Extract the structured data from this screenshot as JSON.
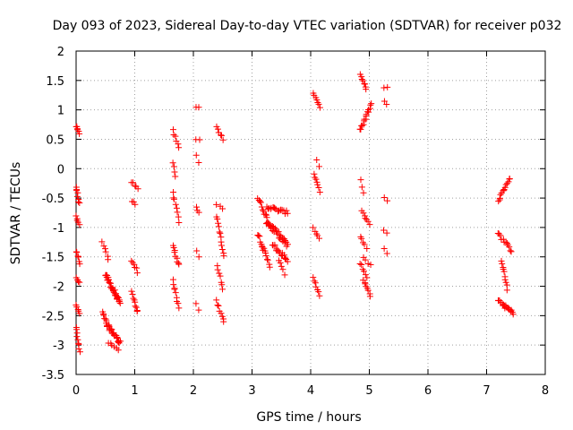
{
  "chart_data": {
    "type": "scatter",
    "title": "Day 093 of 2023, Sidereal Day-to-day VTEC variation (SDTVAR) for receiver p032",
    "xlabel": "GPS time / hours",
    "ylabel": "SDTVAR / TECUs",
    "xlim": [
      0,
      8
    ],
    "ylim": [
      -3.5,
      2
    ],
    "xticks": [
      0,
      1,
      2,
      3,
      4,
      5,
      6,
      7,
      8
    ],
    "xtick_labels": [
      "0",
      "1",
      "2",
      "3",
      "4",
      "5",
      "6",
      "7",
      "8"
    ],
    "yticks": [
      -3.5,
      -3,
      -2.5,
      -2,
      -1.5,
      -1,
      -0.5,
      0,
      0.5,
      1,
      1.5,
      2
    ],
    "ytick_labels": [
      "-3.5",
      "-3",
      "-2.5",
      "-2",
      "-1.5",
      "-1",
      "-0.5",
      "0",
      "0.5",
      "1",
      "1.5",
      "2"
    ],
    "grid": true,
    "marker": "+",
    "color": "#ff0000",
    "segments": [
      {
        "x0": 0.0,
        "x1": 0.05,
        "y0": 0.72,
        "y1": 0.6,
        "n": 6,
        "j": 0.04
      },
      {
        "x0": 0.0,
        "x1": 0.05,
        "y0": -0.3,
        "y1": -0.6,
        "n": 8,
        "j": 0.05
      },
      {
        "x0": 0.0,
        "x1": 0.05,
        "y0": -0.8,
        "y1": -0.95,
        "n": 5,
        "j": 0.04
      },
      {
        "x0": 0.0,
        "x1": 0.06,
        "y0": -1.4,
        "y1": -1.6,
        "n": 6,
        "j": 0.05
      },
      {
        "x0": 0.0,
        "x1": 0.06,
        "y0": -1.85,
        "y1": -1.95,
        "n": 4,
        "j": 0.04
      },
      {
        "x0": 0.0,
        "x1": 0.06,
        "y0": -2.3,
        "y1": -2.45,
        "n": 5,
        "j": 0.04
      },
      {
        "x0": 0.0,
        "x1": 0.06,
        "y0": -2.7,
        "y1": -3.12,
        "n": 9,
        "j": 0.05
      },
      {
        "x0": 0.45,
        "x1": 0.55,
        "y0": -1.25,
        "y1": -1.55,
        "n": 6,
        "j": 0.05
      },
      {
        "x0": 0.45,
        "x1": 0.52,
        "y0": -2.45,
        "y1": -2.6,
        "n": 6,
        "j": 0.04
      },
      {
        "x0": 0.52,
        "x1": 0.75,
        "y0": -2.65,
        "y1": -2.95,
        "n": 28,
        "j": 0.07
      },
      {
        "x0": 0.5,
        "x1": 0.75,
        "y0": -1.8,
        "y1": -2.3,
        "n": 34,
        "j": 0.09
      },
      {
        "x0": 0.55,
        "x1": 0.72,
        "y0": -2.95,
        "y1": -3.1,
        "n": 6,
        "j": 0.04
      },
      {
        "x0": 0.95,
        "x1": 1.05,
        "y0": -0.22,
        "y1": -0.35,
        "n": 5,
        "j": 0.04
      },
      {
        "x0": 0.95,
        "x1": 1.0,
        "y0": -0.55,
        "y1": -0.6,
        "n": 3,
        "j": 0.03
      },
      {
        "x0": 0.95,
        "x1": 1.05,
        "y0": -1.55,
        "y1": -1.75,
        "n": 6,
        "j": 0.05
      },
      {
        "x0": 0.95,
        "x1": 1.05,
        "y0": -2.1,
        "y1": -2.45,
        "n": 9,
        "j": 0.05
      },
      {
        "x0": 1.65,
        "x1": 1.75,
        "y0": 0.65,
        "y1": 0.35,
        "n": 6,
        "j": 0.05
      },
      {
        "x0": 1.65,
        "x1": 1.7,
        "y0": 0.1,
        "y1": -0.12,
        "n": 4,
        "j": 0.04
      },
      {
        "x0": 1.65,
        "x1": 1.75,
        "y0": -0.4,
        "y1": -0.9,
        "n": 8,
        "j": 0.05
      },
      {
        "x0": 1.65,
        "x1": 1.75,
        "y0": -1.3,
        "y1": -1.65,
        "n": 9,
        "j": 0.05
      },
      {
        "x0": 1.65,
        "x1": 1.75,
        "y0": -1.9,
        "y1": -2.35,
        "n": 9,
        "j": 0.05
      },
      {
        "x0": 2.05,
        "x1": 2.1,
        "y0": 1.05,
        "y1": 1.05,
        "n": 2,
        "j": 0.02
      },
      {
        "x0": 2.05,
        "x1": 2.1,
        "y0": 0.5,
        "y1": 0.5,
        "n": 2,
        "j": 0.02
      },
      {
        "x0": 2.05,
        "x1": 2.1,
        "y0": 0.22,
        "y1": 0.1,
        "n": 2,
        "j": 0.02
      },
      {
        "x0": 2.05,
        "x1": 2.1,
        "y0": -0.65,
        "y1": -0.75,
        "n": 3,
        "j": 0.03
      },
      {
        "x0": 2.05,
        "x1": 2.1,
        "y0": -1.4,
        "y1": -1.5,
        "n": 2,
        "j": 0.02
      },
      {
        "x0": 2.05,
        "x1": 2.1,
        "y0": -2.3,
        "y1": -2.4,
        "n": 2,
        "j": 0.02
      },
      {
        "x0": 2.4,
        "x1": 2.5,
        "y0": 0.72,
        "y1": 0.5,
        "n": 6,
        "j": 0.04
      },
      {
        "x0": 2.4,
        "x1": 2.5,
        "y0": -0.6,
        "y1": -0.7,
        "n": 3,
        "j": 0.04
      },
      {
        "x0": 2.4,
        "x1": 2.52,
        "y0": -0.8,
        "y1": -1.5,
        "n": 12,
        "j": 0.05
      },
      {
        "x0": 2.4,
        "x1": 2.5,
        "y0": -1.65,
        "y1": -2.05,
        "n": 7,
        "j": 0.05
      },
      {
        "x0": 2.4,
        "x1": 2.52,
        "y0": -2.25,
        "y1": -2.6,
        "n": 8,
        "j": 0.05
      },
      {
        "x0": 3.1,
        "x1": 3.3,
        "y0": -0.5,
        "y1": -0.95,
        "n": 14,
        "j": 0.07
      },
      {
        "x0": 3.1,
        "x1": 3.3,
        "y0": -1.1,
        "y1": -1.65,
        "n": 16,
        "j": 0.08
      },
      {
        "x0": 3.25,
        "x1": 3.6,
        "y0": -0.65,
        "y1": -0.75,
        "n": 18,
        "j": 0.06
      },
      {
        "x0": 3.25,
        "x1": 3.6,
        "y0": -0.9,
        "y1": -1.3,
        "n": 32,
        "j": 0.1
      },
      {
        "x0": 3.35,
        "x1": 3.6,
        "y0": -1.3,
        "y1": -1.55,
        "n": 18,
        "j": 0.08
      },
      {
        "x0": 3.45,
        "x1": 3.55,
        "y0": -1.55,
        "y1": -1.8,
        "n": 5,
        "j": 0.05
      },
      {
        "x0": 4.05,
        "x1": 4.15,
        "y0": 1.3,
        "y1": 1.05,
        "n": 7,
        "j": 0.04
      },
      {
        "x0": 4.1,
        "x1": 4.15,
        "y0": 0.15,
        "y1": 0.05,
        "n": 2,
        "j": 0.03
      },
      {
        "x0": 4.05,
        "x1": 4.15,
        "y0": -0.1,
        "y1": -0.38,
        "n": 7,
        "j": 0.04
      },
      {
        "x0": 4.05,
        "x1": 4.15,
        "y0": -1.0,
        "y1": -1.2,
        "n": 5,
        "j": 0.04
      },
      {
        "x0": 4.05,
        "x1": 4.15,
        "y0": -1.85,
        "y1": -2.15,
        "n": 7,
        "j": 0.04
      },
      {
        "x0": 4.85,
        "x1": 4.95,
        "y0": 1.6,
        "y1": 1.35,
        "n": 8,
        "j": 0.04
      },
      {
        "x0": 4.85,
        "x1": 5.03,
        "y0": 0.65,
        "y1": 1.1,
        "n": 16,
        "j": 0.05
      },
      {
        "x0": 4.85,
        "x1": 4.9,
        "y0": -0.2,
        "y1": -0.4,
        "n": 3,
        "j": 0.03
      },
      {
        "x0": 4.88,
        "x1": 5.0,
        "y0": -0.7,
        "y1": -0.95,
        "n": 7,
        "j": 0.04
      },
      {
        "x0": 4.85,
        "x1": 4.95,
        "y0": -1.15,
        "y1": -1.35,
        "n": 5,
        "j": 0.04
      },
      {
        "x0": 4.85,
        "x1": 4.95,
        "y0": -1.6,
        "y1": -1.85,
        "n": 6,
        "j": 0.04
      },
      {
        "x0": 4.9,
        "x1": 5.02,
        "y0": -1.5,
        "y1": -1.65,
        "n": 4,
        "j": 0.04
      },
      {
        "x0": 4.9,
        "x1": 5.02,
        "y0": -1.9,
        "y1": -2.15,
        "n": 8,
        "j": 0.05
      },
      {
        "x0": 5.25,
        "x1": 5.3,
        "y0": 1.38,
        "y1": 1.38,
        "n": 2,
        "j": 0.02
      },
      {
        "x0": 5.25,
        "x1": 5.3,
        "y0": 1.15,
        "y1": 1.1,
        "n": 2,
        "j": 0.02
      },
      {
        "x0": 5.25,
        "x1": 5.3,
        "y0": -0.5,
        "y1": -0.55,
        "n": 2,
        "j": 0.02
      },
      {
        "x0": 5.25,
        "x1": 5.3,
        "y0": -1.05,
        "y1": -1.1,
        "n": 2,
        "j": 0.02
      },
      {
        "x0": 5.25,
        "x1": 5.3,
        "y0": -1.35,
        "y1": -1.45,
        "n": 2,
        "j": 0.02
      },
      {
        "x0": 7.2,
        "x1": 7.4,
        "y0": -0.55,
        "y1": -0.15,
        "n": 14,
        "j": 0.05
      },
      {
        "x0": 7.2,
        "x1": 7.42,
        "y0": -1.1,
        "y1": -1.4,
        "n": 12,
        "j": 0.05
      },
      {
        "x0": 7.25,
        "x1": 7.35,
        "y0": -1.55,
        "y1": -2.05,
        "n": 10,
        "j": 0.05
      },
      {
        "x0": 7.2,
        "x1": 7.45,
        "y0": -2.25,
        "y1": -2.45,
        "n": 20,
        "j": 0.06
      }
    ]
  }
}
